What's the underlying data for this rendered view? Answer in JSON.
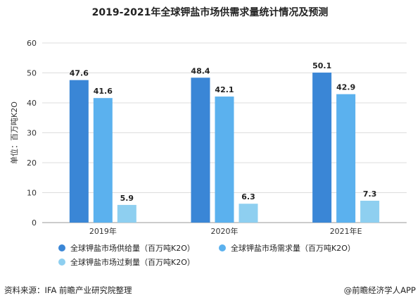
{
  "title": "2019-2021年全球钾盐市场供需求量统计情况及预测",
  "source_text": "资料来源：IFA 前瞻产业研究院整理",
  "brand_text": "@前瞻经济学人APP",
  "chart_data": {
    "type": "bar",
    "categories": [
      "2019年",
      "2020年",
      "2021年E"
    ],
    "series": [
      {
        "name": "全球钾盐市场供给量（百万吨K2O）",
        "values": [
          47.6,
          48.4,
          50.1
        ],
        "color": "#3a86d6"
      },
      {
        "name": "全球钾盐市场需求量（百万吨K2O）",
        "values": [
          41.6,
          42.1,
          42.9
        ],
        "color": "#5bb1ee"
      },
      {
        "name": "全球钾盐市场过剩量（百万吨K2O）",
        "values": [
          5.9,
          6.3,
          7.3
        ],
        "color": "#8ecff0"
      }
    ],
    "ylabel": "单位：百万吨K2O",
    "ylim": [
      0,
      60
    ],
    "yticks": [
      0,
      10,
      20,
      30,
      40,
      50,
      60
    ],
    "grid": true,
    "legend_position": "bottom"
  }
}
